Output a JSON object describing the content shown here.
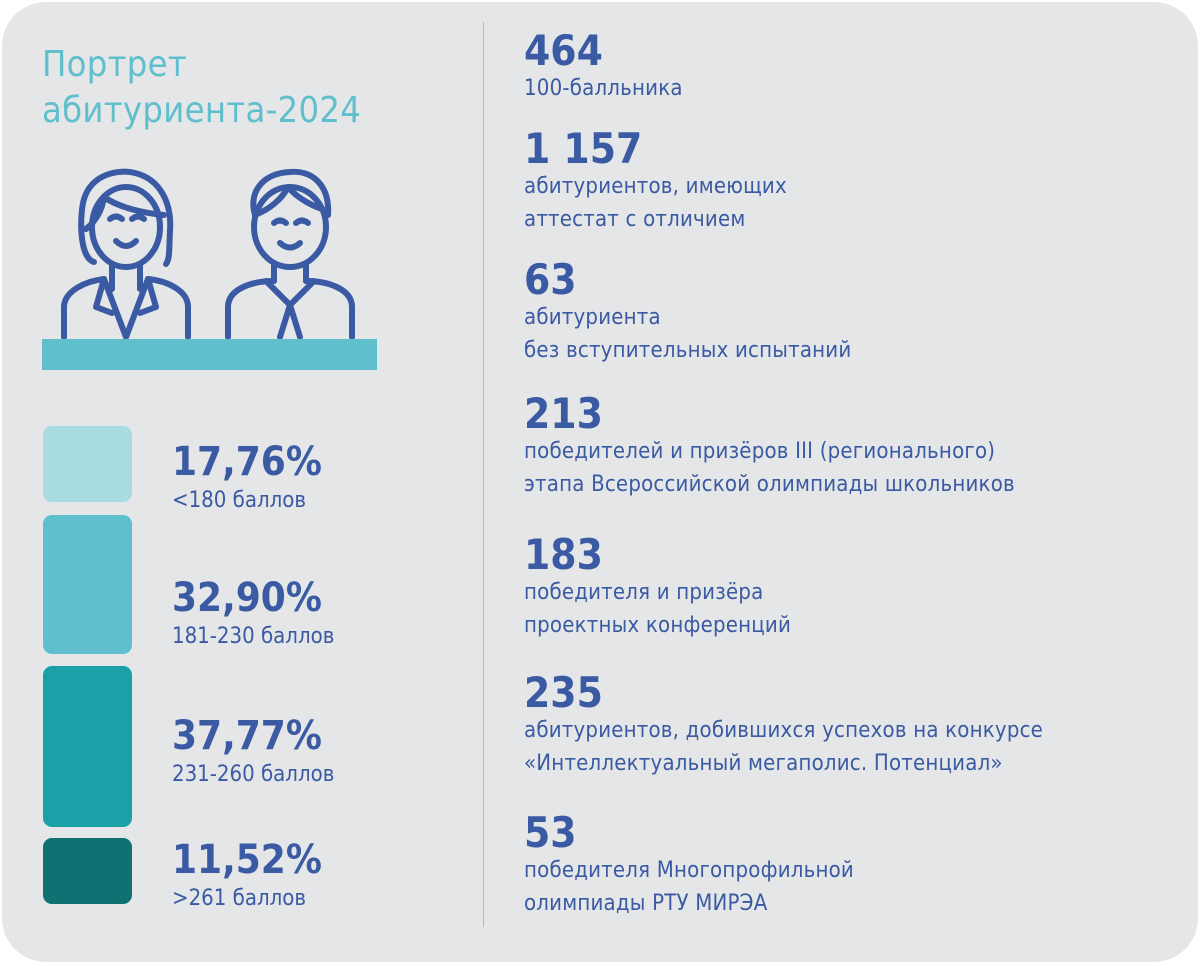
{
  "title_line1": "Портрет",
  "title_line2": "абитуриента-2024",
  "colors": {
    "background": "#e5e6e7",
    "title": "#5fbfcc",
    "text": "#3a5aa3",
    "icon": "#3a5aa3",
    "bar1": "#a8dce1",
    "bar2": "#5fbfcc",
    "bar3": "#1aa1a8",
    "bar4": "#0f7172"
  },
  "distribution": [
    {
      "percent": "17,76%",
      "label": "<180 баллов"
    },
    {
      "percent": "32,90%",
      "label": "181-230 баллов"
    },
    {
      "percent": "37,77%",
      "label": "231-260 баллов"
    },
    {
      "percent": "11,52%",
      "label": ">261 баллов"
    }
  ],
  "stats": [
    {
      "number": "464",
      "line1": "100-балльника",
      "line2": ""
    },
    {
      "number": "1 157",
      "line1": "абитуриентов, имеющих",
      "line2": "аттестат с отличием"
    },
    {
      "number": "63",
      "line1": "абитуриента",
      "line2": "без вступительных испытаний"
    },
    {
      "number": "213",
      "line1": "победителей и призёров III (регионального)",
      "line2": "этапа Всероссийской олимпиады школьников"
    },
    {
      "number": "183",
      "line1": "победителя и призёра",
      "line2": "проектных конференций"
    },
    {
      "number": "235",
      "line1": "абитуриентов, добившихся успехов на конкурсе",
      "line2": "«Интеллектуальный мегаполис. Потенциал»"
    },
    {
      "number": "53",
      "line1": "победителя Многопрофильной",
      "line2": "олимпиады РТУ МИРЭА"
    }
  ]
}
